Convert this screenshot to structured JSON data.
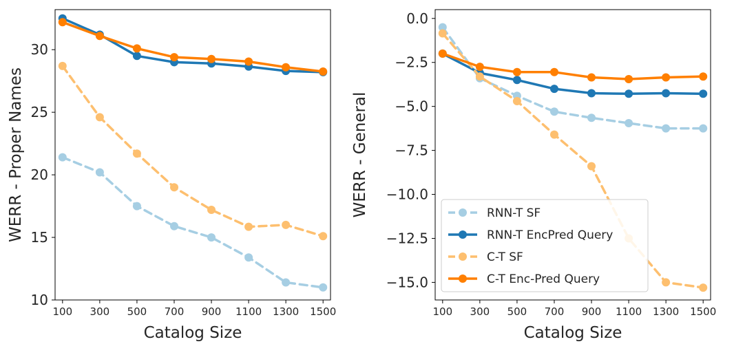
{
  "chart_data": [
    {
      "type": "line",
      "title": "",
      "xlabel": "Catalog Size",
      "ylabel": "WERR - Proper Names",
      "x": [
        100,
        300,
        500,
        700,
        900,
        1100,
        1300,
        1500
      ],
      "x_tick_labels": [
        "100",
        "300",
        "500",
        "700",
        "900",
        "1100",
        "1300",
        "1500"
      ],
      "ylim": [
        10,
        33.2
      ],
      "y_ticks": [
        10,
        15,
        20,
        25,
        30
      ],
      "y_tick_labels": [
        "10",
        "15",
        "20",
        "25",
        "30"
      ],
      "legend": null,
      "series": [
        {
          "name": "RNN-T SF",
          "color": "#a6cee3",
          "style": "dashed",
          "values": [
            21.4,
            20.2,
            17.5,
            15.9,
            15.0,
            13.4,
            11.4,
            11.0
          ]
        },
        {
          "name": "RNN-T EncPred Query",
          "color": "#1f78b4",
          "style": "solid",
          "values": [
            32.5,
            31.2,
            29.5,
            29.0,
            28.9,
            28.65,
            28.3,
            28.2
          ]
        },
        {
          "name": "C-T SF",
          "color": "#fdbf6f",
          "style": "dashed",
          "values": [
            28.7,
            24.6,
            21.7,
            19.0,
            17.2,
            15.85,
            16.0,
            15.1
          ]
        },
        {
          "name": "C-T Enc-Pred Query",
          "color": "#ff7f00",
          "style": "solid",
          "values": [
            32.2,
            31.1,
            30.1,
            29.4,
            29.25,
            29.05,
            28.6,
            28.25
          ]
        }
      ]
    },
    {
      "type": "line",
      "title": "",
      "xlabel": "Catalog Size",
      "ylabel": "WERR - General",
      "x": [
        100,
        300,
        500,
        700,
        900,
        1100,
        1300,
        1500
      ],
      "x_tick_labels": [
        "100",
        "300",
        "500",
        "700",
        "900",
        "1100",
        "1300",
        "1500"
      ],
      "ylim": [
        -16.0,
        0.5
      ],
      "y_ticks": [
        0.0,
        -2.5,
        -5.0,
        -7.5,
        -10.0,
        -12.5,
        -15.0
      ],
      "y_tick_labels": [
        "0.0",
        "−2.5",
        "−5.0",
        "−7.5",
        "−10.0",
        "−12.5",
        "−15.0"
      ],
      "legend": "bottom-left",
      "series": [
        {
          "name": "RNN-T SF",
          "color": "#a6cee3",
          "style": "dashed",
          "values": [
            -0.5,
            -3.4,
            -4.4,
            -5.3,
            -5.65,
            -5.95,
            -6.25,
            -6.25
          ]
        },
        {
          "name": "RNN-T EncPred Query",
          "color": "#1f78b4",
          "style": "solid",
          "values": [
            -2.0,
            -3.1,
            -3.5,
            -4.0,
            -4.25,
            -4.28,
            -4.25,
            -4.28
          ]
        },
        {
          "name": "C-T SF",
          "color": "#fdbf6f",
          "style": "dashed",
          "values": [
            -0.85,
            -3.3,
            -4.7,
            -6.6,
            -8.4,
            -12.5,
            -15.0,
            -15.3
          ]
        },
        {
          "name": "C-T Enc-Pred Query",
          "color": "#ff7f00",
          "style": "solid",
          "values": [
            -2.0,
            -2.75,
            -3.05,
            -3.05,
            -3.35,
            -3.45,
            -3.35,
            -3.3
          ]
        }
      ]
    }
  ]
}
